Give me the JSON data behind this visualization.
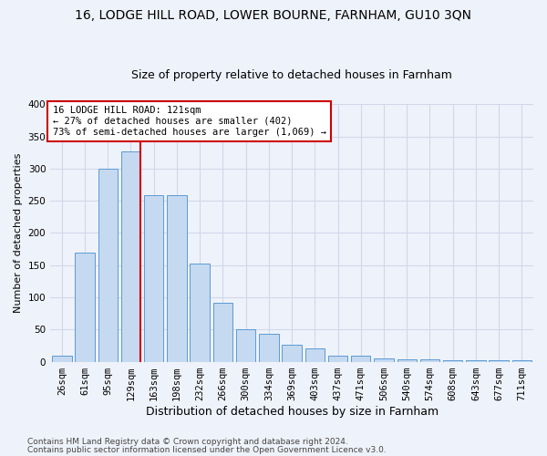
{
  "title1": "16, LODGE HILL ROAD, LOWER BOURNE, FARNHAM, GU10 3QN",
  "title2": "Size of property relative to detached houses in Farnham",
  "xlabel": "Distribution of detached houses by size in Farnham",
  "ylabel": "Number of detached properties",
  "categories": [
    "26sqm",
    "61sqm",
    "95sqm",
    "129sqm",
    "163sqm",
    "198sqm",
    "232sqm",
    "266sqm",
    "300sqm",
    "334sqm",
    "369sqm",
    "403sqm",
    "437sqm",
    "471sqm",
    "506sqm",
    "540sqm",
    "574sqm",
    "608sqm",
    "643sqm",
    "677sqm",
    "711sqm"
  ],
  "values": [
    10,
    170,
    300,
    327,
    259,
    258,
    152,
    91,
    50,
    43,
    27,
    20,
    10,
    9,
    5,
    4,
    4,
    2,
    2,
    2,
    2
  ],
  "bar_color": "#c5d9f0",
  "bar_edge_color": "#5b9bd5",
  "vline_color": "#cc0000",
  "vline_x_index": 3,
  "annotation_text": "16 LODGE HILL ROAD: 121sqm\n← 27% of detached houses are smaller (402)\n73% of semi-detached houses are larger (1,069) →",
  "annotation_box_facecolor": "#ffffff",
  "annotation_box_edgecolor": "#cc0000",
  "ylim": [
    0,
    400
  ],
  "yticks": [
    0,
    50,
    100,
    150,
    200,
    250,
    300,
    350,
    400
  ],
  "footer1": "Contains HM Land Registry data © Crown copyright and database right 2024.",
  "footer2": "Contains public sector information licensed under the Open Government Licence v3.0.",
  "title1_fontsize": 10,
  "title2_fontsize": 9,
  "xlabel_fontsize": 9,
  "ylabel_fontsize": 8,
  "tick_fontsize": 7.5,
  "annotation_fontsize": 7.5,
  "footer_fontsize": 6.5,
  "grid_color": "#d0d8e8",
  "bg_color": "#eef2fa"
}
